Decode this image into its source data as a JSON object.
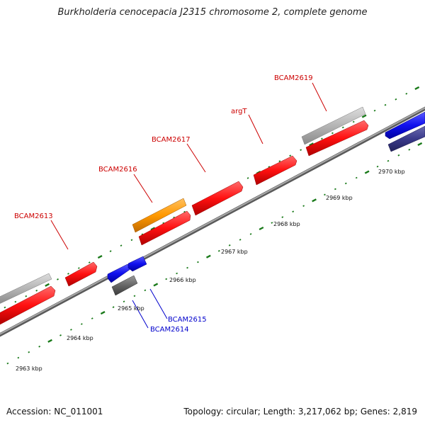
{
  "title": "Burkholderia cenocepacia J2315 chromosome 2, complete genome",
  "footer": {
    "accession": "Accession: NC_011001",
    "summary": "Topology: circular; Length: 3,217,062 bp; Genes: 2,819"
  },
  "colors": {
    "backbone": "#888888",
    "tick": "#1a7a1a",
    "cds": "#ff1010",
    "trna": "#ff1010",
    "other_forward": "#b0b0b0",
    "reverse_blue": "#1010ee",
    "reverse_grey": "#666666",
    "reverse_navy": "#3a3a8a",
    "orange": "#ff9900",
    "label_red": "#cc0000",
    "label_blue": "#0000cc"
  },
  "scale": {
    "kbp_labels": [
      "2963 kbp",
      "2964 kbp",
      "2965 kbp",
      "2966 kbp",
      "2967 kbp",
      "2968 kbp",
      "2969 kbp",
      "2970 kbp"
    ]
  },
  "gene_labels": [
    {
      "name": "BCAM2613",
      "strand": "forward"
    },
    {
      "name": "BCAM2616",
      "strand": "forward"
    },
    {
      "name": "BCAM2617",
      "strand": "forward"
    },
    {
      "name": "argT",
      "strand": "forward"
    },
    {
      "name": "BCAM2619",
      "strand": "forward"
    },
    {
      "name": "BCAM2615",
      "strand": "reverse"
    },
    {
      "name": "BCAM2614",
      "strand": "reverse"
    }
  ]
}
